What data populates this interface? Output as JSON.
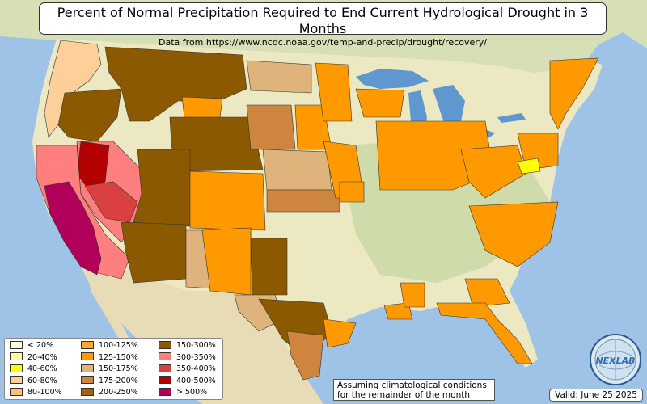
{
  "header": {
    "title": "Percent of Normal Precipitation Required to End Current Hydrological Drought in 3 Months",
    "subtitle": "Data from https://www.ncdc.noaa.gov/temp-and-precip/drought/recovery/"
  },
  "colors": {
    "ocean": "#9ec3e6",
    "land": "#ece8c2",
    "land_green": "#c9d7a4",
    "mexico": "#e8dcb6",
    "canada": "#d6dfb6",
    "lake": "#5f98cf"
  },
  "legend": {
    "items": [
      {
        "label": "< 20%",
        "color": "#ffffe0"
      },
      {
        "label": "20-40%",
        "color": "#ffff99"
      },
      {
        "label": "40-60%",
        "color": "#ffff00"
      },
      {
        "label": "60-80%",
        "color": "#fdd09a"
      },
      {
        "label": "80-100%",
        "color": "#ffc066"
      },
      {
        "label": "100-125%",
        "color": "#ffa630"
      },
      {
        "label": "125-150%",
        "color": "#ff9900"
      },
      {
        "label": "150-175%",
        "color": "#dfb47c"
      },
      {
        "label": "175-200%",
        "color": "#cd853f"
      },
      {
        "label": "200-250%",
        "color": "#a0620e"
      },
      {
        "label": "150-300%",
        "color": "#8b5a00"
      },
      {
        "label": "300-350%",
        "color": "#ff7f7f"
      },
      {
        "label": "350-400%",
        "color": "#d94040"
      },
      {
        "label": "400-500%",
        "color": "#b30000"
      },
      {
        "label": "> 500%",
        "color": "#b0005a"
      }
    ]
  },
  "footnote": {
    "line1": "Assuming climatological conditions",
    "line2": "for the remainder of the month"
  },
  "valid": "Valid: June 25 2025",
  "logo": {
    "text": "NEXLAB"
  }
}
